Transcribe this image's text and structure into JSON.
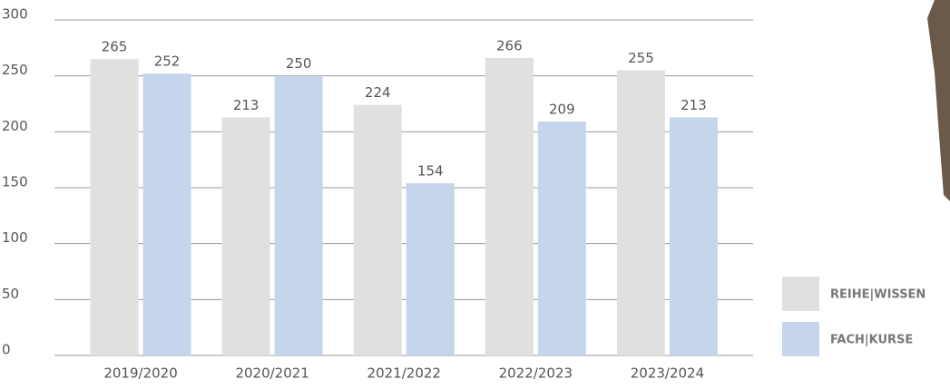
{
  "chart_data": {
    "type": "bar",
    "categories": [
      "2019/2020",
      "2020/2021",
      "2021/2022",
      "2022/2023",
      "2023/2024"
    ],
    "series": [
      {
        "name": "REIHE|WISSEN",
        "color": "#e0e0df",
        "values": [
          265,
          213,
          224,
          266,
          255
        ]
      },
      {
        "name": "FACH|KURSE",
        "color": "#c5d5eb",
        "values": [
          252,
          250,
          154,
          209,
          213
        ]
      }
    ],
    "ylim": [
      0,
      300
    ],
    "yticks": [
      0,
      50,
      100,
      150,
      200,
      250,
      300
    ],
    "grid": true,
    "legend": "right"
  }
}
